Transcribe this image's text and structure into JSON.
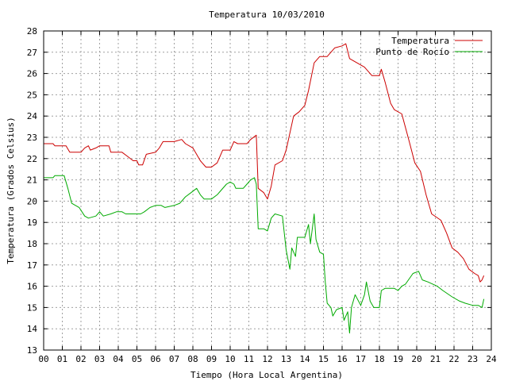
{
  "chart_data": {
    "type": "line",
    "title": "Temperatura 10/03/2010",
    "xlabel": "Tiempo (Hora Local Argentina)",
    "ylabel": "Temperatura (Grados Celsius)",
    "xlim": [
      0,
      24
    ],
    "ylim": [
      13,
      28
    ],
    "x_ticks": [
      "00",
      "01",
      "02",
      "03",
      "04",
      "05",
      "06",
      "07",
      "08",
      "09",
      "10",
      "11",
      "12",
      "13",
      "14",
      "15",
      "16",
      "17",
      "18",
      "19",
      "20",
      "21",
      "22",
      "23",
      "24"
    ],
    "y_ticks": [
      "13",
      "14",
      "15",
      "16",
      "17",
      "18",
      "19",
      "20",
      "21",
      "22",
      "23",
      "24",
      "25",
      "26",
      "27",
      "28"
    ],
    "grid": true,
    "legend_position": "top-right",
    "series": [
      {
        "name": "Temperatura",
        "color": "#cc0000",
        "points": [
          [
            0.0,
            22.7
          ],
          [
            0.5,
            22.7
          ],
          [
            0.6,
            22.6
          ],
          [
            1.2,
            22.6
          ],
          [
            1.4,
            22.3
          ],
          [
            2.0,
            22.3
          ],
          [
            2.2,
            22.5
          ],
          [
            2.4,
            22.6
          ],
          [
            2.5,
            22.4
          ],
          [
            2.8,
            22.5
          ],
          [
            3.0,
            22.6
          ],
          [
            3.5,
            22.6
          ],
          [
            3.6,
            22.3
          ],
          [
            4.2,
            22.3
          ],
          [
            4.5,
            22.1
          ],
          [
            4.8,
            21.9
          ],
          [
            5.0,
            21.9
          ],
          [
            5.1,
            21.7
          ],
          [
            5.3,
            21.7
          ],
          [
            5.5,
            22.2
          ],
          [
            6.0,
            22.3
          ],
          [
            6.2,
            22.5
          ],
          [
            6.4,
            22.8
          ],
          [
            7.0,
            22.8
          ],
          [
            7.4,
            22.9
          ],
          [
            7.6,
            22.7
          ],
          [
            8.0,
            22.5
          ],
          [
            8.4,
            21.9
          ],
          [
            8.7,
            21.6
          ],
          [
            9.0,
            21.6
          ],
          [
            9.3,
            21.8
          ],
          [
            9.6,
            22.4
          ],
          [
            10.0,
            22.4
          ],
          [
            10.2,
            22.8
          ],
          [
            10.4,
            22.7
          ],
          [
            10.9,
            22.7
          ],
          [
            11.1,
            22.9
          ],
          [
            11.4,
            23.1
          ],
          [
            11.5,
            20.6
          ],
          [
            11.8,
            20.4
          ],
          [
            12.0,
            20.1
          ],
          [
            12.2,
            20.7
          ],
          [
            12.4,
            21.7
          ],
          [
            12.8,
            21.9
          ],
          [
            13.0,
            22.4
          ],
          [
            13.4,
            24.0
          ],
          [
            13.7,
            24.2
          ],
          [
            14.0,
            24.5
          ],
          [
            14.2,
            25.2
          ],
          [
            14.5,
            26.5
          ],
          [
            14.8,
            26.8
          ],
          [
            15.2,
            26.8
          ],
          [
            15.4,
            27.0
          ],
          [
            15.6,
            27.2
          ],
          [
            16.0,
            27.3
          ],
          [
            16.2,
            27.4
          ],
          [
            16.4,
            26.7
          ],
          [
            16.8,
            26.5
          ],
          [
            17.2,
            26.3
          ],
          [
            17.6,
            25.9
          ],
          [
            18.0,
            25.9
          ],
          [
            18.1,
            26.2
          ],
          [
            18.3,
            25.6
          ],
          [
            18.6,
            24.6
          ],
          [
            18.8,
            24.3
          ],
          [
            19.2,
            24.1
          ],
          [
            19.6,
            22.8
          ],
          [
            19.9,
            21.8
          ],
          [
            20.2,
            21.4
          ],
          [
            20.5,
            20.3
          ],
          [
            20.8,
            19.4
          ],
          [
            21.3,
            19.1
          ],
          [
            21.6,
            18.5
          ],
          [
            21.9,
            17.8
          ],
          [
            22.2,
            17.6
          ],
          [
            22.5,
            17.3
          ],
          [
            22.8,
            16.8
          ],
          [
            23.1,
            16.6
          ],
          [
            23.3,
            16.5
          ],
          [
            23.4,
            16.2
          ],
          [
            23.5,
            16.3
          ],
          [
            23.6,
            16.5
          ]
        ]
      },
      {
        "name": "Punto de Rocío",
        "color": "#00aa00",
        "points": [
          [
            0.0,
            21.1
          ],
          [
            0.5,
            21.1
          ],
          [
            0.6,
            21.2
          ],
          [
            1.1,
            21.2
          ],
          [
            1.3,
            20.6
          ],
          [
            1.5,
            19.9
          ],
          [
            1.9,
            19.7
          ],
          [
            2.2,
            19.3
          ],
          [
            2.4,
            19.2
          ],
          [
            2.8,
            19.3
          ],
          [
            3.0,
            19.5
          ],
          [
            3.2,
            19.3
          ],
          [
            3.6,
            19.4
          ],
          [
            3.9,
            19.5
          ],
          [
            4.2,
            19.5
          ],
          [
            4.4,
            19.4
          ],
          [
            5.0,
            19.4
          ],
          [
            5.2,
            19.4
          ],
          [
            5.4,
            19.5
          ],
          [
            5.7,
            19.7
          ],
          [
            6.0,
            19.8
          ],
          [
            6.3,
            19.8
          ],
          [
            6.5,
            19.7
          ],
          [
            7.0,
            19.8
          ],
          [
            7.3,
            19.9
          ],
          [
            7.6,
            20.2
          ],
          [
            7.9,
            20.4
          ],
          [
            8.2,
            20.6
          ],
          [
            8.4,
            20.3
          ],
          [
            8.6,
            20.1
          ],
          [
            9.0,
            20.1
          ],
          [
            9.3,
            20.3
          ],
          [
            9.5,
            20.5
          ],
          [
            9.8,
            20.8
          ],
          [
            10.0,
            20.9
          ],
          [
            10.2,
            20.8
          ],
          [
            10.3,
            20.6
          ],
          [
            10.7,
            20.6
          ],
          [
            10.9,
            20.8
          ],
          [
            11.1,
            21.0
          ],
          [
            11.3,
            21.1
          ],
          [
            11.4,
            20.8
          ],
          [
            11.5,
            18.7
          ],
          [
            11.8,
            18.7
          ],
          [
            12.0,
            18.6
          ],
          [
            12.2,
            19.2
          ],
          [
            12.4,
            19.4
          ],
          [
            12.8,
            19.3
          ],
          [
            13.0,
            17.7
          ],
          [
            13.2,
            16.8
          ],
          [
            13.3,
            17.8
          ],
          [
            13.5,
            17.4
          ],
          [
            13.6,
            18.3
          ],
          [
            14.0,
            18.3
          ],
          [
            14.2,
            18.9
          ],
          [
            14.3,
            18.0
          ],
          [
            14.5,
            19.4
          ],
          [
            14.6,
            18.2
          ],
          [
            14.8,
            17.6
          ],
          [
            15.0,
            17.5
          ],
          [
            15.1,
            16.2
          ],
          [
            15.2,
            15.2
          ],
          [
            15.4,
            15.0
          ],
          [
            15.5,
            14.6
          ],
          [
            15.7,
            14.9
          ],
          [
            16.0,
            15.0
          ],
          [
            16.1,
            14.4
          ],
          [
            16.3,
            14.8
          ],
          [
            16.4,
            13.8
          ],
          [
            16.5,
            15.0
          ],
          [
            16.7,
            15.6
          ],
          [
            17.0,
            15.1
          ],
          [
            17.2,
            15.6
          ],
          [
            17.3,
            16.2
          ],
          [
            17.5,
            15.3
          ],
          [
            17.7,
            15.0
          ],
          [
            18.0,
            15.0
          ],
          [
            18.1,
            15.8
          ],
          [
            18.3,
            15.9
          ],
          [
            18.8,
            15.9
          ],
          [
            19.0,
            15.8
          ],
          [
            19.2,
            16.0
          ],
          [
            19.4,
            16.1
          ],
          [
            19.8,
            16.6
          ],
          [
            20.1,
            16.7
          ],
          [
            20.3,
            16.3
          ],
          [
            20.6,
            16.2
          ],
          [
            21.1,
            16.0
          ],
          [
            21.4,
            15.8
          ],
          [
            21.9,
            15.5
          ],
          [
            22.3,
            15.3
          ],
          [
            22.6,
            15.2
          ],
          [
            23.0,
            15.1
          ],
          [
            23.3,
            15.1
          ],
          [
            23.5,
            15.0
          ],
          [
            23.6,
            15.4
          ]
        ]
      }
    ]
  }
}
